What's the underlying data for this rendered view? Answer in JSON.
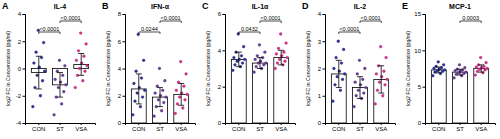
{
  "chart_data": [
    {
      "type": "bar",
      "panel": "A",
      "title": "IL-4",
      "ylabel": "log2 FC in Concentration (pg/ml)",
      "categories": [
        "CON",
        "ST",
        "VSA"
      ],
      "values": [
        -0.3,
        -1.2,
        0.3
      ],
      "errors": [
        1.2,
        0.9,
        0.8
      ],
      "points": [
        [
          -2.8,
          -2.0,
          -1.4,
          -0.9,
          -0.5,
          -0.2,
          0.1,
          0.4,
          0.8,
          1.2,
          1.9,
          2.8
        ],
        [
          -3.4,
          -2.6,
          -2.1,
          -1.7,
          -1.4,
          -1.2,
          -1.0,
          -0.8,
          -0.5,
          -0.2,
          0.2,
          0.6
        ],
        [
          -1.4,
          -0.9,
          -0.5,
          -0.2,
          0.0,
          0.2,
          0.4,
          0.6,
          0.9,
          1.3,
          1.8,
          2.6
        ]
      ],
      "colors": [
        "#2e3192",
        "#6a3d9a",
        "#d6338a"
      ],
      "ylim": [
        -4,
        4
      ],
      "yticks": [
        -4,
        -2,
        0,
        2,
        4
      ],
      "annotations": [
        {
          "pair": [
            "ST",
            "VSA"
          ],
          "label": "<0.0001"
        },
        {
          "pair": [
            "CON",
            "ST"
          ],
          "label": "<0.0001"
        }
      ]
    },
    {
      "type": "bar",
      "panel": "B",
      "title": "IFN-α",
      "ylabel": "log2 FC in Concentration (pg/ml)",
      "categories": [
        "CON",
        "ST",
        "VSA"
      ],
      "values": [
        2.5,
        1.9,
        2.1
      ],
      "errors": [
        1.1,
        0.7,
        0.8
      ],
      "points": [
        [
          0.6,
          1.2,
          1.6,
          1.9,
          2.2,
          2.4,
          2.6,
          2.9,
          3.3,
          3.8,
          4.6,
          6.5
        ],
        [
          0.5,
          0.9,
          1.2,
          1.5,
          1.7,
          1.9,
          2.0,
          2.2,
          2.4,
          2.7,
          3.1,
          4.0
        ],
        [
          0.7,
          1.1,
          1.4,
          1.7,
          1.9,
          2.1,
          2.2,
          2.4,
          2.7,
          3.0,
          3.6,
          4.5
        ]
      ],
      "colors": [
        "#2e3192",
        "#6a3d9a",
        "#d6338a"
      ],
      "ylim": [
        0,
        8
      ],
      "yticks": [
        0,
        2,
        4,
        6,
        8
      ],
      "annotations": [
        {
          "pair": [
            "ST",
            "VSA"
          ],
          "label": "<0.0001"
        },
        {
          "pair": [
            "CON",
            "ST"
          ],
          "label": "0.0244"
        }
      ]
    },
    {
      "type": "bar",
      "panel": "C",
      "title": "IL-1α",
      "ylabel": "log2 FC in Concentration (pg/ml)",
      "categories": [
        "CON",
        "ST",
        "VSA"
      ],
      "values": [
        3.5,
        3.3,
        3.6
      ],
      "errors": [
        0.4,
        0.3,
        0.4
      ],
      "points": [
        [
          2.9,
          3.1,
          3.2,
          3.3,
          3.4,
          3.5,
          3.5,
          3.6,
          3.7,
          3.9,
          4.2,
          4.9
        ],
        [
          2.8,
          3.0,
          3.1,
          3.2,
          3.3,
          3.3,
          3.4,
          3.5,
          3.6,
          3.7,
          3.9,
          4.3
        ],
        [
          3.0,
          3.2,
          3.3,
          3.4,
          3.5,
          3.6,
          3.7,
          3.8,
          3.9,
          4.1,
          4.4,
          4.9
        ]
      ],
      "colors": [
        "#2e3192",
        "#6a3d9a",
        "#d6338a"
      ],
      "ylim": [
        0,
        6
      ],
      "yticks": [
        0,
        2,
        4,
        6
      ],
      "annotations": [
        {
          "pair": [
            "ST",
            "VSA"
          ],
          "label": "<0.0001"
        },
        {
          "pair": [
            "CON",
            "ST"
          ],
          "label": "0.0432"
        }
      ]
    },
    {
      "type": "bar",
      "panel": "D",
      "title": "IL-2",
      "ylabel": "log2 FC in Concentration (pg/ml)",
      "categories": [
        "CON",
        "ST",
        "VSA"
      ],
      "values": [
        1.8,
        1.3,
        1.6
      ],
      "errors": [
        0.5,
        0.4,
        0.5
      ],
      "points": [
        [
          0.8,
          1.2,
          1.4,
          1.6,
          1.7,
          1.8,
          1.9,
          2.0,
          2.2,
          2.4,
          2.7,
          3.0
        ],
        [
          0.6,
          0.9,
          1.0,
          1.1,
          1.2,
          1.3,
          1.4,
          1.5,
          1.6,
          1.8,
          2.0,
          2.3
        ],
        [
          0.7,
          1.0,
          1.2,
          1.4,
          1.5,
          1.6,
          1.7,
          1.8,
          1.9,
          2.1,
          2.4,
          2.8
        ]
      ],
      "colors": [
        "#2e3192",
        "#6a3d9a",
        "#d6338a"
      ],
      "ylim": [
        0,
        4
      ],
      "yticks": [
        0,
        1,
        2,
        3,
        4
      ],
      "annotations": [
        {
          "pair": [
            "ST",
            "VSA"
          ],
          "label": "<0.0001"
        },
        {
          "pair": [
            "CON",
            "ST"
          ],
          "label": "<0.0001"
        }
      ]
    },
    {
      "type": "bar",
      "panel": "E",
      "title": "MCP-1",
      "ylabel": "log2 FC in Concentration (pg/ml)",
      "categories": [
        "CON",
        "ST",
        "VSA"
      ],
      "values": [
        7.3,
        7.0,
        7.5
      ],
      "errors": [
        0.4,
        0.4,
        0.5
      ],
      "points": [
        [
          6.5,
          6.8,
          7.0,
          7.1,
          7.2,
          7.3,
          7.4,
          7.5,
          7.6,
          7.8,
          8.0,
          8.4
        ],
        [
          6.2,
          6.5,
          6.7,
          6.8,
          6.9,
          7.0,
          7.1,
          7.2,
          7.3,
          7.4,
          7.6,
          8.0
        ],
        [
          6.6,
          6.9,
          7.1,
          7.3,
          7.4,
          7.5,
          7.6,
          7.7,
          7.8,
          8.0,
          8.3,
          9.0
        ]
      ],
      "colors": [
        "#2e3192",
        "#6a3d9a",
        "#d6338a"
      ],
      "ylim": [
        0,
        15
      ],
      "yticks": [
        0,
        5,
        10,
        15
      ],
      "annotations": [
        {
          "pair": [
            "ST",
            "VSA"
          ],
          "label": "0.0003"
        }
      ]
    }
  ]
}
